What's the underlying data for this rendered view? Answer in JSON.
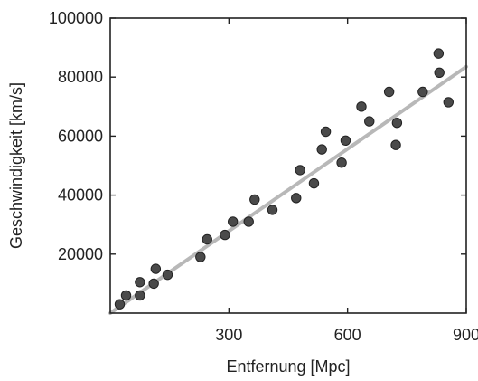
{
  "chart_data": {
    "type": "scatter",
    "xlabel": "Entfernung [Mpc]",
    "ylabel": "Geschwindigkeit [km/s]",
    "xlim": [
      0,
      900
    ],
    "ylim": [
      0,
      100000
    ],
    "x_ticks": [
      300,
      600,
      900
    ],
    "x_tick_labels": [
      "300",
      "600",
      "900"
    ],
    "y_ticks": [
      20000,
      40000,
      60000,
      80000,
      100000
    ],
    "y_tick_labels": [
      "20000",
      "40000",
      "60000",
      "80000",
      "100000"
    ],
    "grid": false,
    "legend": "none",
    "series": [
      {
        "points": [
          {
            "x": 24,
            "y": 3000
          },
          {
            "x": 40,
            "y": 6000
          },
          {
            "x": 75,
            "y": 10500
          },
          {
            "x": 75,
            "y": 6000
          },
          {
            "x": 110,
            "y": 10000
          },
          {
            "x": 115,
            "y": 15000
          },
          {
            "x": 145,
            "y": 13000
          },
          {
            "x": 228,
            "y": 19000
          },
          {
            "x": 245,
            "y": 25000
          },
          {
            "x": 290,
            "y": 26500
          },
          {
            "x": 310,
            "y": 31000
          },
          {
            "x": 350,
            "y": 31000
          },
          {
            "x": 365,
            "y": 38500
          },
          {
            "x": 410,
            "y": 35000
          },
          {
            "x": 470,
            "y": 39000
          },
          {
            "x": 480,
            "y": 48500
          },
          {
            "x": 515,
            "y": 44000
          },
          {
            "x": 535,
            "y": 55500
          },
          {
            "x": 545,
            "y": 61500
          },
          {
            "x": 585,
            "y": 51000
          },
          {
            "x": 595,
            "y": 58500
          },
          {
            "x": 635,
            "y": 70000
          },
          {
            "x": 655,
            "y": 65000
          },
          {
            "x": 705,
            "y": 75000
          },
          {
            "x": 722,
            "y": 57000
          },
          {
            "x": 725,
            "y": 64500
          },
          {
            "x": 790,
            "y": 75000
          },
          {
            "x": 830,
            "y": 88000
          },
          {
            "x": 832,
            "y": 81500
          },
          {
            "x": 855,
            "y": 71500
          }
        ]
      }
    ],
    "fit_line": {
      "x": [
        0,
        900
      ],
      "y": [
        0,
        83500
      ]
    },
    "colors": {
      "points": "#4a4a4a",
      "point_edge": "#222222",
      "fit_line": "#b8b8b8",
      "axis": "#222222"
    }
  }
}
